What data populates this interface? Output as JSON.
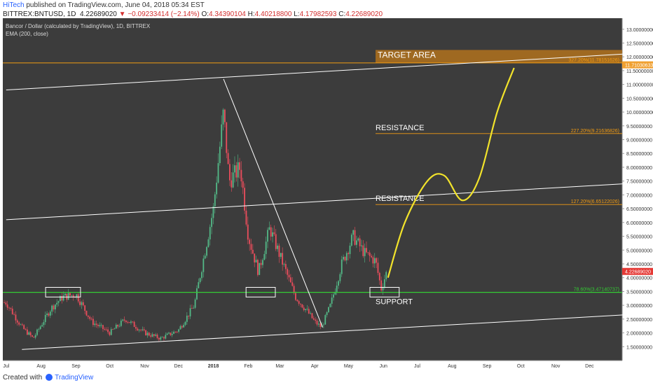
{
  "header": {
    "author": "HiTech",
    "published_text": "published on TradingView.com, June 04, 2018 05:34 EST"
  },
  "ohlc": {
    "symbol": "BITTREX:BNTUSD, 1D",
    "last": "4.22689020",
    "change": "−0.09233414 (−2.14%)",
    "open_label": "O:",
    "open": "4.34390104",
    "high_label": "H:",
    "high": "4.40218800",
    "low_label": "L:",
    "low": "4.17982593",
    "close_label": "C:",
    "close": "4.22689020"
  },
  "legend": {
    "series": "Bancor / Dollar (calculated by TradingView), 1D, BITTREX",
    "indicator": "EMA (200, close)"
  },
  "footer": {
    "created_with": "Created with",
    "brand": "TradingView"
  },
  "colors": {
    "background": "#3c3c3c",
    "up": "#53b987",
    "down": "#eb4d5c",
    "fib": "#f39c12",
    "support": "#33cc33",
    "projection": "#f2e32b",
    "trendline": "#ffffff",
    "price_tag": "#e53935",
    "target_fill": "#b8741a"
  },
  "chart_data": {
    "type": "candlestick",
    "ylim": [
      1.0,
      13.4
    ],
    "y_ticks": [
      "13.00000000",
      "12.50000000",
      "12.00000000",
      "11.50000000",
      "11.00000000",
      "10.50000000",
      "10.00000000",
      "9.50000000",
      "9.00000000",
      "8.50000000",
      "8.00000000",
      "7.50000000",
      "7.00000000",
      "6.50000000",
      "6.00000000",
      "5.50000000",
      "5.00000000",
      "4.50000000",
      "4.00000000",
      "3.50000000",
      "3.00000000",
      "2.50000000",
      "2.00000000",
      "1.50000000"
    ],
    "x_ticks": [
      "Jul",
      "Aug",
      "Sep",
      "Oct",
      "Nov",
      "Dec",
      "2018",
      "Feb",
      "Mar",
      "Apr",
      "May",
      "Jun",
      "Jul",
      "Aug",
      "Sep",
      "Oct",
      "Nov",
      "Dec"
    ],
    "last_price": "4.22689020",
    "target_price_tag": "11.71030633",
    "price_path": [
      {
        "d": "2017-07-01",
        "v": 3.1
      },
      {
        "d": "2017-07-15",
        "v": 2.2
      },
      {
        "d": "2017-07-25",
        "v": 1.8
      },
      {
        "d": "2017-08-10",
        "v": 2.9
      },
      {
        "d": "2017-08-20",
        "v": 3.3
      },
      {
        "d": "2017-09-01",
        "v": 3.4
      },
      {
        "d": "2017-09-15",
        "v": 2.4
      },
      {
        "d": "2017-10-01",
        "v": 2.0
      },
      {
        "d": "2017-10-15",
        "v": 2.5
      },
      {
        "d": "2017-11-01",
        "v": 2.0
      },
      {
        "d": "2017-11-15",
        "v": 1.8
      },
      {
        "d": "2017-12-01",
        "v": 2.1
      },
      {
        "d": "2017-12-15",
        "v": 3.0
      },
      {
        "d": "2018-01-01",
        "v": 6.5
      },
      {
        "d": "2018-01-10",
        "v": 10.0
      },
      {
        "d": "2018-01-15",
        "v": 7.5
      },
      {
        "d": "2018-01-25",
        "v": 8.0
      },
      {
        "d": "2018-02-01",
        "v": 5.5
      },
      {
        "d": "2018-02-10",
        "v": 4.2
      },
      {
        "d": "2018-02-20",
        "v": 5.8
      },
      {
        "d": "2018-03-01",
        "v": 4.8
      },
      {
        "d": "2018-03-15",
        "v": 3.3
      },
      {
        "d": "2018-03-25",
        "v": 2.8
      },
      {
        "d": "2018-04-01",
        "v": 2.4
      },
      {
        "d": "2018-04-07",
        "v": 2.2
      },
      {
        "d": "2018-04-15",
        "v": 3.0
      },
      {
        "d": "2018-04-25",
        "v": 4.5
      },
      {
        "d": "2018-05-05",
        "v": 5.5
      },
      {
        "d": "2018-05-15",
        "v": 4.9
      },
      {
        "d": "2018-05-25",
        "v": 4.6
      },
      {
        "d": "2018-05-30",
        "v": 3.6
      },
      {
        "d": "2018-06-04",
        "v": 4.23
      }
    ],
    "fib_levels": [
      {
        "label": "327.20%(11.78151626)",
        "value": 11.78
      },
      {
        "label": "227.20%(9.21636826)",
        "value": 9.22
      },
      {
        "label": "127.20%(6.65122026)",
        "value": 6.65
      },
      {
        "label": "78.60%(3.47140737)",
        "value": 3.47
      }
    ],
    "zones": [
      {
        "label": "TARGET AREA",
        "from": 11.78,
        "to": 12.25
      },
      {
        "label": "RESISTANCE",
        "value": 9.22
      },
      {
        "label": "RESISTANCE",
        "value": 6.65
      },
      {
        "label": "SUPPORT",
        "value": 3.47
      }
    ],
    "trendlines": [
      {
        "name": "channel-top",
        "from": {
          "d": "2017-07-01",
          "v": 10.8
        },
        "to": {
          "d": "2018-12-31",
          "v": 12.1
        }
      },
      {
        "name": "channel-mid",
        "from": {
          "d": "2017-07-01",
          "v": 6.1
        },
        "to": {
          "d": "2018-12-31",
          "v": 7.4
        }
      },
      {
        "name": "channel-bottom",
        "from": {
          "d": "2017-07-15",
          "v": 1.4
        },
        "to": {
          "d": "2018-12-31",
          "v": 2.65
        }
      },
      {
        "name": "downtrend",
        "from": {
          "d": "2018-01-10",
          "v": 11.2
        },
        "to": {
          "d": "2018-04-08",
          "v": 2.2
        }
      }
    ],
    "support_boxes": [
      {
        "from": "2017-08-05",
        "to": "2017-09-05",
        "v_low": 3.3,
        "v_high": 3.65
      },
      {
        "from": "2018-01-30",
        "to": "2018-02-25",
        "v_low": 3.3,
        "v_high": 3.65
      },
      {
        "from": "2018-05-20",
        "to": "2018-06-15",
        "v_low": 3.3,
        "v_high": 3.65
      }
    ],
    "projection": [
      {
        "d": "2018-06-05",
        "v": 4.0
      },
      {
        "d": "2018-06-20",
        "v": 6.0
      },
      {
        "d": "2018-07-10",
        "v": 7.5
      },
      {
        "d": "2018-07-25",
        "v": 7.7
      },
      {
        "d": "2018-08-10",
        "v": 6.8
      },
      {
        "d": "2018-08-25",
        "v": 7.6
      },
      {
        "d": "2018-09-10",
        "v": 10.0
      },
      {
        "d": "2018-09-25",
        "v": 11.6
      }
    ]
  }
}
